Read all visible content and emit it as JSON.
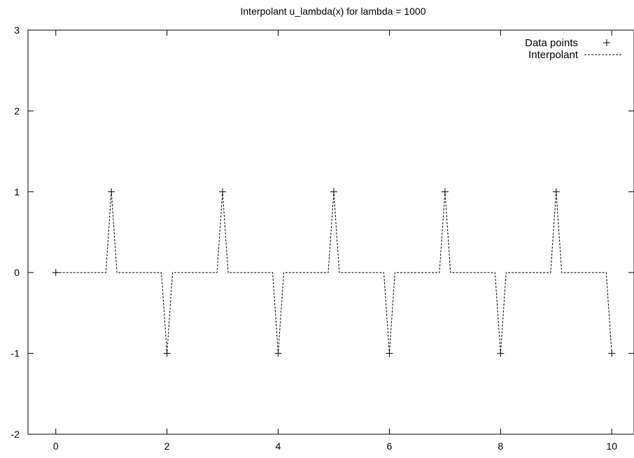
{
  "chart_data": {
    "type": "line",
    "title": "Interpolant u_lambda(x) for lambda = 1000",
    "xlabel": "",
    "ylabel": "",
    "xlim": [
      -0.5,
      10.4
    ],
    "ylim": [
      -2,
      3
    ],
    "xticks": [
      0,
      2,
      4,
      6,
      8,
      10
    ],
    "yticks": [
      -2,
      -1,
      0,
      1,
      2,
      3
    ],
    "grid": false,
    "legend_position": "top-right",
    "series": [
      {
        "name": "Data points",
        "style": "points",
        "marker": "+",
        "color": "#000000",
        "x": [
          0,
          1,
          2,
          3,
          4,
          5,
          6,
          7,
          8,
          9,
          10
        ],
        "y": [
          0,
          1,
          -1,
          1,
          -1,
          1,
          -1,
          1,
          -1,
          1,
          -1
        ]
      },
      {
        "name": "Interpolant",
        "style": "dashed-line",
        "color": "#000000",
        "x": [
          0,
          0.9,
          1,
          1.1,
          1.9,
          2,
          2.1,
          2.9,
          3,
          3.1,
          3.9,
          4,
          4.1,
          4.9,
          5,
          5.1,
          5.9,
          6,
          6.1,
          6.9,
          7,
          7.1,
          7.9,
          8,
          8.1,
          8.9,
          9,
          9.1,
          9.9,
          10
        ],
        "y": [
          0,
          0,
          1,
          0,
          0,
          -1,
          0,
          0,
          1,
          0,
          0,
          -1,
          0,
          0,
          1,
          0,
          0,
          -1,
          0,
          0,
          1,
          0,
          0,
          -1,
          0,
          0,
          1,
          0,
          0,
          -1
        ]
      }
    ]
  }
}
